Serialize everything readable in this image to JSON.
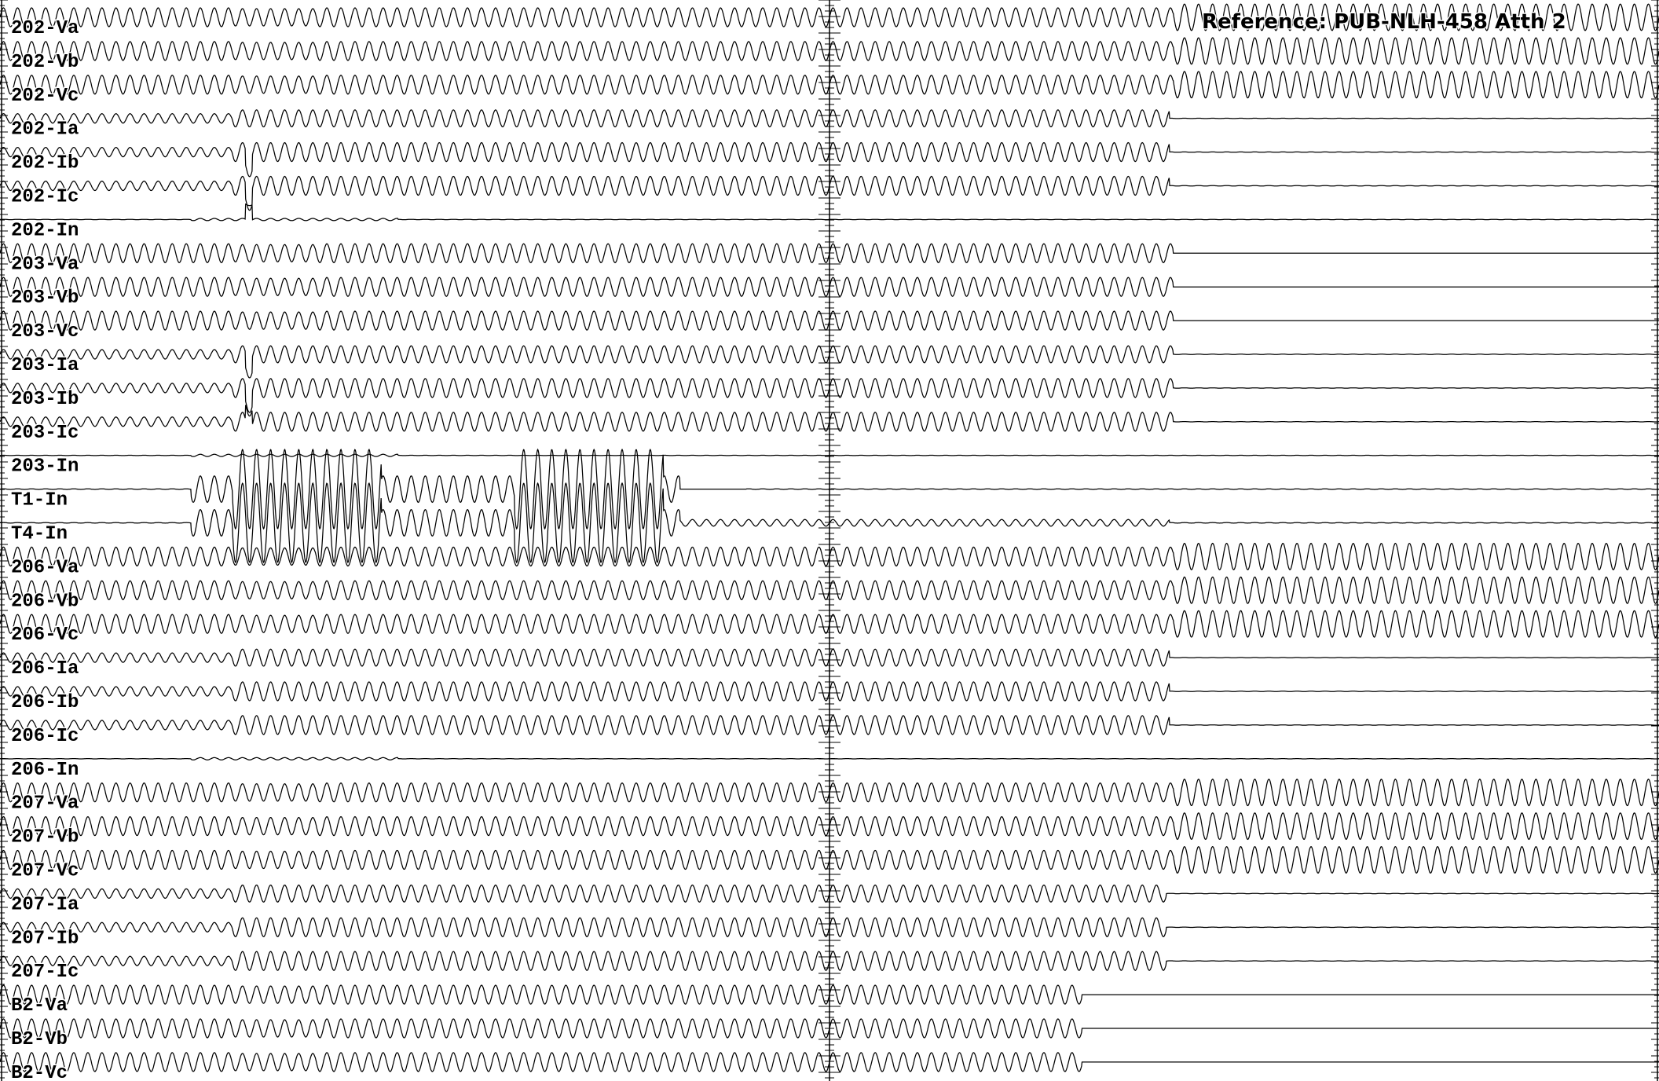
{
  "reference": "Reference:  PUB-NLH-458 Atth 2",
  "chart_data": {
    "type": "line",
    "title": "",
    "xlabel": "",
    "ylabel": "",
    "xlim": [
      0,
      1
    ],
    "grid": false,
    "cycles_in_window": 118,
    "series": [
      {
        "name": "202-Va",
        "kind": "V",
        "pre": 1.0,
        "post": 1.4,
        "clear": 0.707
      },
      {
        "name": "202-Vb",
        "kind": "V",
        "pre": 1.0,
        "post": 1.4,
        "clear": 0.707
      },
      {
        "name": "202-Vc",
        "kind": "V",
        "pre": 1.0,
        "post": 1.4,
        "clear": 0.707
      },
      {
        "name": "202-Ia",
        "kind": "I",
        "pre": 0.5,
        "fault": 0.9,
        "clear": 0.705
      },
      {
        "name": "202-Ib",
        "kind": "I",
        "pre": 0.5,
        "fault": 1.0,
        "clear": 0.705
      },
      {
        "name": "202-Ic",
        "kind": "I",
        "pre": 0.5,
        "fault": 1.0,
        "clear": 0.705
      },
      {
        "name": "202-In",
        "kind": "N",
        "level": 0.1,
        "clear": 0.705
      },
      {
        "name": "203-Va",
        "kind": "V",
        "pre": 1.0,
        "post": 0.0,
        "clear": 0.707
      },
      {
        "name": "203-Vb",
        "kind": "V",
        "pre": 1.0,
        "post": 0.0,
        "clear": 0.707
      },
      {
        "name": "203-Vc",
        "kind": "V",
        "pre": 1.0,
        "post": 0.0,
        "clear": 0.707
      },
      {
        "name": "203-Ia",
        "kind": "I",
        "pre": 0.5,
        "fault": 0.9,
        "clear": 0.707
      },
      {
        "name": "203-Ib",
        "kind": "I",
        "pre": 0.5,
        "fault": 1.0,
        "clear": 0.707
      },
      {
        "name": "203-Ic",
        "kind": "I",
        "pre": 0.5,
        "fault": 1.0,
        "clear": 0.707
      },
      {
        "name": "203-In",
        "kind": "N",
        "level": 0.1,
        "clear": 0.705
      },
      {
        "name": "T1-In",
        "kind": "T",
        "level": 0.0,
        "clear": 0.45
      },
      {
        "name": "T4-In",
        "kind": "T",
        "level": 0.35,
        "clear": 0.705
      },
      {
        "name": "206-Va",
        "kind": "V",
        "pre": 1.0,
        "post": 1.4,
        "clear": 0.707
      },
      {
        "name": "206-Vb",
        "kind": "V",
        "pre": 1.0,
        "post": 1.4,
        "clear": 0.707
      },
      {
        "name": "206-Vc",
        "kind": "V",
        "pre": 1.0,
        "post": 1.4,
        "clear": 0.707
      },
      {
        "name": "206-Ia",
        "kind": "I",
        "pre": 0.5,
        "fault": 0.9,
        "clear": 0.705
      },
      {
        "name": "206-Ib",
        "kind": "I",
        "pre": 0.5,
        "fault": 1.0,
        "clear": 0.705
      },
      {
        "name": "206-Ic",
        "kind": "I",
        "pre": 0.5,
        "fault": 1.0,
        "clear": 0.705
      },
      {
        "name": "206-In",
        "kind": "N",
        "level": 0.1,
        "clear": 0.705
      },
      {
        "name": "207-Va",
        "kind": "V",
        "pre": 1.0,
        "post": 1.4,
        "clear": 0.707
      },
      {
        "name": "207-Vb",
        "kind": "V",
        "pre": 1.0,
        "post": 1.4,
        "clear": 0.707
      },
      {
        "name": "207-Vc",
        "kind": "V",
        "pre": 1.0,
        "post": 1.4,
        "clear": 0.707
      },
      {
        "name": "207-Ia",
        "kind": "I",
        "pre": 0.5,
        "fault": 0.9,
        "clear": 0.703
      },
      {
        "name": "207-Ib",
        "kind": "I",
        "pre": 0.5,
        "fault": 1.0,
        "clear": 0.703
      },
      {
        "name": "207-Ic",
        "kind": "I",
        "pre": 0.5,
        "fault": 1.0,
        "clear": 0.703
      },
      {
        "name": "B2-Va",
        "kind": "V",
        "pre": 1.0,
        "post": 0.0,
        "clear": 0.652
      },
      {
        "name": "B2-Vb",
        "kind": "V",
        "pre": 1.0,
        "post": 0.0,
        "clear": 0.652
      },
      {
        "name": "B2-Vc",
        "kind": "V",
        "pre": 1.0,
        "post": 0.0,
        "clear": 0.652
      }
    ]
  }
}
